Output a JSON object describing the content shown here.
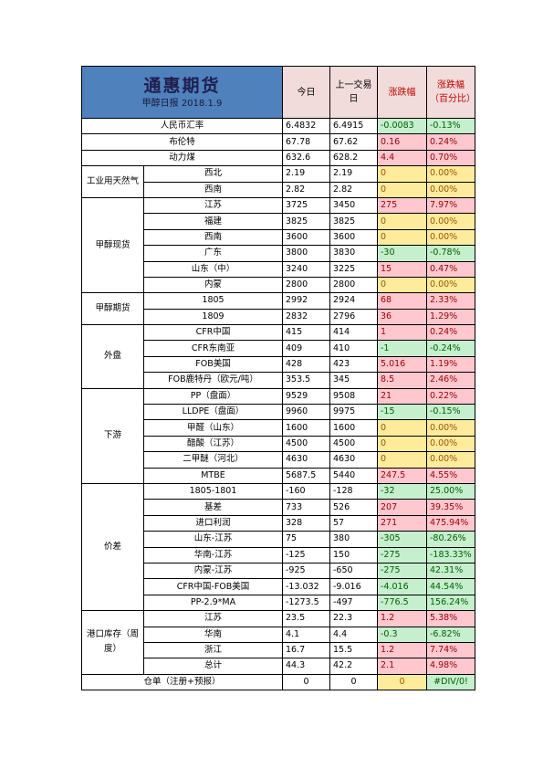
{
  "header": {
    "title": "通惠期货",
    "subtitle": "甲醇日报 2018.1.9",
    "col_today": "今日",
    "col_prev": "上一交易日",
    "col_change": "涨跌幅",
    "col_change_pct": "涨跌幅（百分比）"
  },
  "single_rows": [
    {
      "label": "人民币汇率",
      "today": "6.4832",
      "prev": "6.4915",
      "change": "-0.0083",
      "pct": "-0.13%",
      "sign": "neg"
    },
    {
      "label": "布伦特",
      "today": "67.78",
      "prev": "67.62",
      "change": "0.16",
      "pct": "0.24%",
      "sign": "pos"
    },
    {
      "label": "动力煤",
      "today": "632.6",
      "prev": "628.2",
      "change": "4.4",
      "pct": "0.70%",
      "sign": "pos"
    }
  ],
  "groups": [
    {
      "name": "工业用天然气",
      "rows": [
        {
          "label": "西北",
          "today": "2.19",
          "prev": "2.19",
          "change": "0",
          "pct": "0.00%",
          "sign": "zero"
        },
        {
          "label": "西南",
          "today": "2.82",
          "prev": "2.82",
          "change": "0",
          "pct": "0.00%",
          "sign": "zero"
        }
      ]
    },
    {
      "name": "甲醇现货",
      "rows": [
        {
          "label": "江苏",
          "today": "3725",
          "prev": "3450",
          "change": "275",
          "pct": "7.97%",
          "sign": "pos"
        },
        {
          "label": "福建",
          "today": "3825",
          "prev": "3825",
          "change": "0",
          "pct": "0.00%",
          "sign": "zero"
        },
        {
          "label": "西南",
          "today": "3600",
          "prev": "3600",
          "change": "0",
          "pct": "0.00%",
          "sign": "zero"
        },
        {
          "label": "广东",
          "today": "3800",
          "prev": "3830",
          "change": "-30",
          "pct": "-0.78%",
          "sign": "neg"
        },
        {
          "label": "山东（中）",
          "today": "3240",
          "prev": "3225",
          "change": "15",
          "pct": "0.47%",
          "sign": "pos"
        },
        {
          "label": "内蒙",
          "today": "2800",
          "prev": "2800",
          "change": "0",
          "pct": "0.00%",
          "sign": "zero"
        }
      ]
    },
    {
      "name": "甲醇期货",
      "rows": [
        {
          "label": "1805",
          "today": "2992",
          "prev": "2924",
          "change": "68",
          "pct": "2.33%",
          "sign": "pos"
        },
        {
          "label": "1809",
          "today": "2832",
          "prev": "2796",
          "change": "36",
          "pct": "1.29%",
          "sign": "pos"
        }
      ]
    },
    {
      "name": "外盘",
      "rows": [
        {
          "label": "CFR中国",
          "today": "415",
          "prev": "414",
          "change": "1",
          "pct": "0.24%",
          "sign": "pos"
        },
        {
          "label": "CFR东南亚",
          "today": "409",
          "prev": "410",
          "change": "-1",
          "pct": "-0.24%",
          "sign": "neg"
        },
        {
          "label": "FOB美国",
          "today": "428",
          "prev": "423",
          "change": "5.016",
          "pct": "1.19%",
          "sign": "pos"
        },
        {
          "label": "FOB鹿特丹（欧元/吨）",
          "today": "353.5",
          "prev": "345",
          "change": "8.5",
          "pct": "2.46%",
          "sign": "pos"
        }
      ]
    },
    {
      "name": "下游",
      "rows": [
        {
          "label": "PP（盘面）",
          "today": "9529",
          "prev": "9508",
          "change": "21",
          "pct": "0.22%",
          "sign": "pos"
        },
        {
          "label": "LLDPE（盘面）",
          "today": "9960",
          "prev": "9975",
          "change": "-15",
          "pct": "-0.15%",
          "sign": "neg"
        },
        {
          "label": "甲醛（山东）",
          "today": "1600",
          "prev": "1600",
          "change": "0",
          "pct": "0.00%",
          "sign": "zero"
        },
        {
          "label": "醋酸（江苏）",
          "today": "4500",
          "prev": "4500",
          "change": "0",
          "pct": "0.00%",
          "sign": "zero"
        },
        {
          "label": "二甲醚（河北）",
          "today": "4630",
          "prev": "4630",
          "change": "0",
          "pct": "0.00%",
          "sign": "zero"
        },
        {
          "label": "MTBE",
          "today": "5687.5",
          "prev": "5440",
          "change": "247.5",
          "pct": "4.55%",
          "sign": "pos"
        }
      ]
    },
    {
      "name": "价差",
      "rows": [
        {
          "label": "1805-1801",
          "today": "-160",
          "prev": "-128",
          "change": "-32",
          "pct": "25.00%",
          "sign": "neg"
        },
        {
          "label": "基差",
          "today": "733",
          "prev": "526",
          "change": "207",
          "pct": "39.35%",
          "sign": "pos"
        },
        {
          "label": "进口利润",
          "today": "328",
          "prev": "57",
          "change": "271",
          "pct": "475.94%",
          "sign": "pos"
        },
        {
          "label": "山东-江苏",
          "today": "75",
          "prev": "380",
          "change": "-305",
          "pct": "-80.26%",
          "sign": "neg"
        },
        {
          "label": "华南-江苏",
          "today": "-125",
          "prev": "150",
          "change": "-275",
          "pct": "-183.33%",
          "sign": "neg"
        },
        {
          "label": "内蒙-江苏",
          "today": "-925",
          "prev": "-650",
          "change": "-275",
          "pct": "42.31%",
          "sign": "neg"
        },
        {
          "label": "CFR中国-FOB美国",
          "today": "-13.032",
          "prev": "-9.016",
          "change": "-4.016",
          "pct": "44.54%",
          "sign": "neg"
        },
        {
          "label": "PP-2.9*MA",
          "today": "-1273.5",
          "prev": "-497",
          "change": "-776.5",
          "pct": "156.24%",
          "sign": "neg"
        }
      ]
    },
    {
      "name": "港口库存（周度）",
      "rows": [
        {
          "label": "江苏",
          "today": "23.5",
          "prev": "22.3",
          "change": "1.2",
          "pct": "5.38%",
          "sign": "pos"
        },
        {
          "label": "华南",
          "today": "4.1",
          "prev": "4.4",
          "change": "-0.3",
          "pct": "-6.82%",
          "sign": "neg"
        },
        {
          "label": "浙江",
          "today": "16.7",
          "prev": "15.5",
          "change": "1.2",
          "pct": "7.74%",
          "sign": "pos"
        },
        {
          "label": "总计",
          "today": "44.3",
          "prev": "42.2",
          "change": "2.1",
          "pct": "4.98%",
          "sign": "pos"
        }
      ]
    }
  ],
  "footer_row": {
    "label": "仓单（注册+预报）",
    "today": "0",
    "prev": "0",
    "change": "0",
    "pct": "#DIV/0!",
    "sign": "zero",
    "pct_sign": "neg"
  }
}
